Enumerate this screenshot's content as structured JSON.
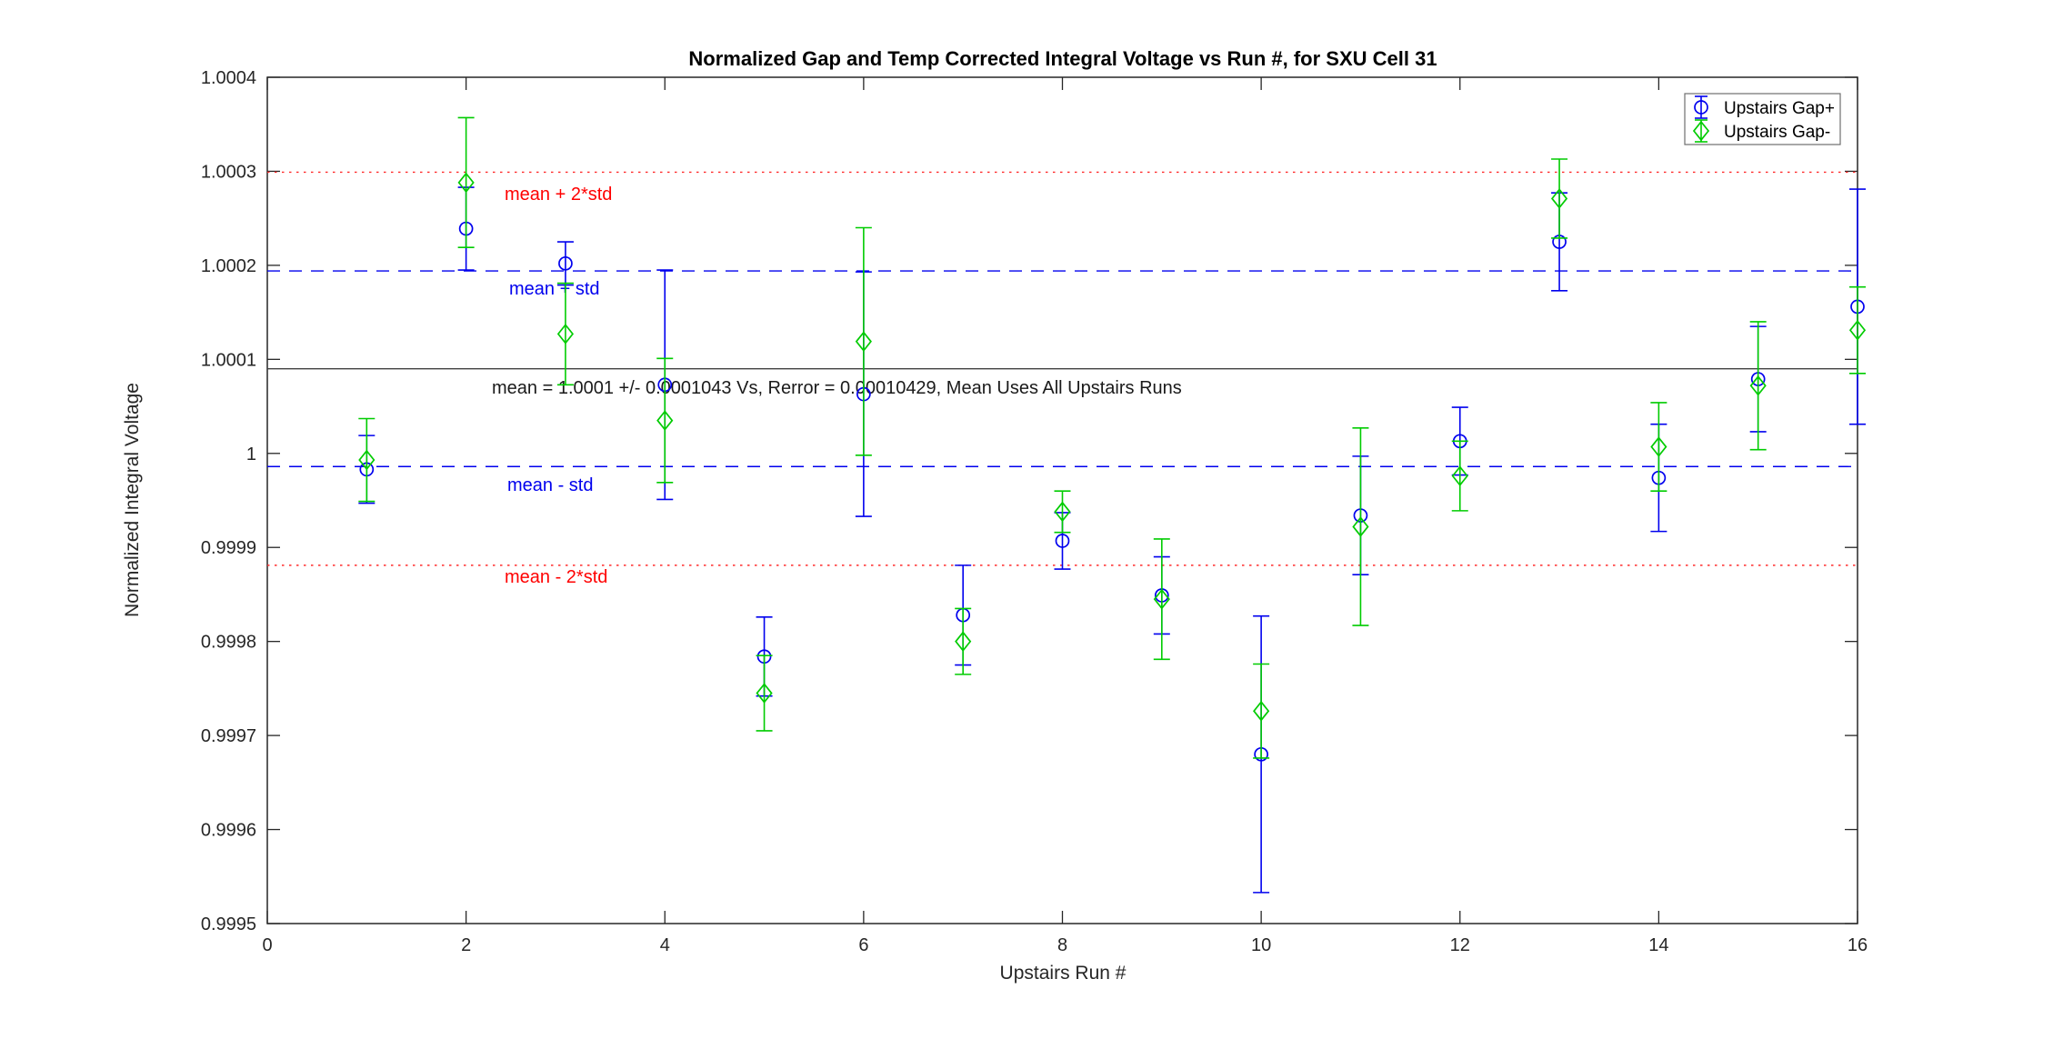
{
  "title": "Normalized Gap and Temp Corrected Integral Voltage vs Run #, for SXU Cell 31",
  "axes": {
    "xlabel": "Upstairs Run #",
    "ylabel": "Normalized Integral Voltage",
    "xlim": [
      0,
      16
    ],
    "ylim": [
      0.9995,
      1.0004
    ],
    "xticks": {
      "values": [
        0,
        2,
        4,
        6,
        8,
        10,
        12,
        14,
        16
      ],
      "labels": [
        "0",
        "2",
        "4",
        "6",
        "8",
        "10",
        "12",
        "14",
        "16"
      ]
    },
    "yticks": {
      "values": [
        0.9995,
        0.9996,
        0.9997,
        0.9998,
        0.9999,
        1.0,
        1.0001,
        1.0002,
        1.0003,
        1.0004
      ],
      "labels": [
        "0.9995",
        "0.9996",
        "0.9997",
        "0.9998",
        "0.9999",
        "1",
        "1.0001",
        "1.0002",
        "1.0003",
        "1.0004"
      ]
    }
  },
  "legend": {
    "entries": [
      {
        "label": "Upstairs Gap+",
        "color": "#0000ee",
        "marker": "circle"
      },
      {
        "label": "Upstairs Gap-",
        "color": "#00cc00",
        "marker": "diamond"
      }
    ]
  },
  "annotations": {
    "mean_text": "mean = 1.0001 +/- 0.0001043 Vs, Rerror = 0.00010429, Mean Uses All Upstairs Runs",
    "plus2std_label": "mean + 2*std",
    "plus_std_label": "mean + std",
    "minus_std_label": "mean - std",
    "minus2std_label": "mean - 2*std"
  },
  "ref_lines": [
    {
      "name": "mean",
      "value": 1.00009,
      "color": "#404040",
      "style": "solid"
    },
    {
      "name": "mean_plus_std",
      "value": 1.000194,
      "color": "#0000ee",
      "style": "dashed"
    },
    {
      "name": "mean_minus_std",
      "value": 0.999986,
      "color": "#0000ee",
      "style": "dashed"
    },
    {
      "name": "mean_plus_2std",
      "value": 1.000299,
      "color": "#ff2a2a",
      "style": "dotted"
    },
    {
      "name": "mean_minus_2std",
      "value": 0.999881,
      "color": "#ff2a2a",
      "style": "dotted"
    }
  ],
  "chart_data": {
    "type": "scatter-errorbar",
    "xlabel": "Upstairs Run #",
    "ylabel": "Normalized Integral Voltage",
    "xlim": [
      0,
      16
    ],
    "ylim": [
      0.9995,
      1.0004
    ],
    "x": [
      1,
      2,
      3,
      4,
      5,
      6,
      7,
      8,
      9,
      10,
      11,
      12,
      13,
      14,
      15,
      16
    ],
    "series": [
      {
        "name": "Upstairs Gap+",
        "marker": "circle",
        "color": "#0000ee",
        "y": [
          0.999983,
          1.000239,
          1.000202,
          1.000073,
          0.999784,
          1.000063,
          0.999828,
          0.999907,
          0.999849,
          0.99968,
          0.999934,
          1.000013,
          1.000225,
          0.999974,
          1.000079,
          1.000156
        ],
        "err": [
          3.6e-05,
          4.4e-05,
          2.3e-05,
          0.000122,
          4.2e-05,
          0.00013,
          5.3e-05,
          3e-05,
          4.1e-05,
          0.000147,
          6.3e-05,
          3.6e-05,
          5.2e-05,
          5.7e-05,
          5.6e-05,
          0.000125
        ]
      },
      {
        "name": "Upstairs Gap-",
        "marker": "diamond",
        "color": "#00cc00",
        "y": [
          0.999993,
          1.000288,
          1.000127,
          1.000035,
          0.999745,
          1.000119,
          0.9998,
          0.999938,
          0.999845,
          0.999726,
          0.999922,
          0.999976,
          1.000271,
          1.000007,
          1.000072,
          1.000131
        ],
        "err": [
          4.4e-05,
          6.9e-05,
          5.4e-05,
          6.6e-05,
          4e-05,
          0.000121,
          3.5e-05,
          2.2e-05,
          6.4e-05,
          5e-05,
          0.000105,
          3.7e-05,
          4.2e-05,
          4.7e-05,
          6.8e-05,
          4.6e-05
        ]
      }
    ]
  }
}
